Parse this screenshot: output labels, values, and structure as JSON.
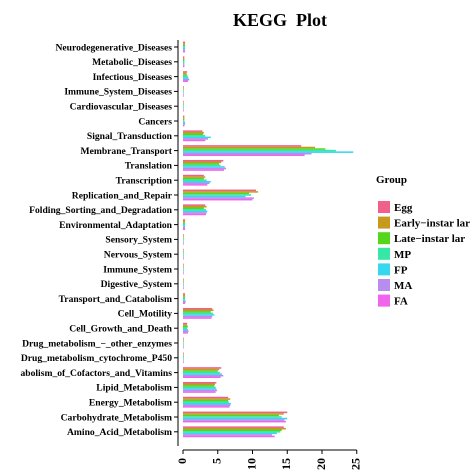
{
  "chart_data": {
    "type": "bar",
    "orientation": "horizontal",
    "title": "KEGG  Plot",
    "xlabel": "",
    "ylabel": "",
    "xlim": [
      0,
      25
    ],
    "xticks": [
      "0",
      "5",
      "10",
      "15",
      "20",
      "25"
    ],
    "legend_title": "Group",
    "legend_position": "right",
    "categories": [
      "Neurodegenerative_Diseases",
      "Metabolic_Diseases",
      "Infectious_Diseases",
      "Immune_System_Diseases",
      "Cardiovascular_Diseases",
      "Cancers",
      "Signal_Transduction",
      "Membrane_Transport",
      "Translation",
      "Transcription",
      "Replication_and_Repair",
      "Folding_Sorting_and_Degradation",
      "Environmental_Adaptation",
      "Sensory_System",
      "Nervous_System",
      "Immune_System",
      "Digestive_System",
      "Transport_and_Catabolism",
      "Cell_Motility",
      "Cell_Growth_and_Death",
      "Drug_metabolism_−_other_enzymes",
      "Drug_metabolism_cytochrome_P450",
      "abolism_of_Cofactors_and_Vitamins",
      "Lipid_Metabolism",
      "Energy_Metabolism",
      "Carbohydrate_Metabolism",
      "Amino_Acid_Metabolism"
    ],
    "series": [
      {
        "name": "Egg",
        "color": "#f0608a",
        "values": [
          0.3,
          0.2,
          0.6,
          0.1,
          0.1,
          0.2,
          2.8,
          17.0,
          5.8,
          3.0,
          10.5,
          3.2,
          0.3,
          0.1,
          0.1,
          0.1,
          0.1,
          0.3,
          4.2,
          0.6,
          0.1,
          0.1,
          5.5,
          4.8,
          6.5,
          15.0,
          14.5
        ]
      },
      {
        "name": "Early−instar larvae",
        "color": "#c79a1e",
        "values": [
          0.3,
          0.2,
          0.5,
          0.1,
          0.1,
          0.2,
          3.0,
          19.0,
          5.5,
          3.2,
          10.8,
          3.4,
          0.3,
          0.1,
          0.1,
          0.1,
          0.1,
          0.3,
          4.4,
          0.6,
          0.1,
          0.1,
          5.2,
          4.6,
          6.8,
          14.5,
          14.8
        ]
      },
      {
        "name": "Late−instar larvae",
        "color": "#55d61a",
        "values": [
          0.3,
          0.2,
          0.6,
          0.1,
          0.1,
          0.2,
          2.9,
          20.5,
          5.2,
          3.0,
          9.5,
          3.0,
          0.3,
          0.1,
          0.1,
          0.1,
          0.1,
          0.3,
          4.0,
          0.7,
          0.1,
          0.1,
          5.0,
          4.5,
          6.5,
          13.8,
          14.2
        ]
      },
      {
        "name": "MP",
        "color": "#35e8a6",
        "values": [
          0.3,
          0.2,
          0.7,
          0.1,
          0.1,
          0.2,
          3.2,
          22.0,
          5.4,
          3.4,
          9.8,
          3.3,
          0.3,
          0.1,
          0.1,
          0.1,
          0.1,
          0.3,
          4.3,
          0.6,
          0.1,
          0.1,
          5.3,
          4.7,
          6.6,
          14.2,
          14.0
        ]
      },
      {
        "name": "FP",
        "color": "#36d8f0",
        "values": [
          0.3,
          0.2,
          0.8,
          0.1,
          0.1,
          0.3,
          4.0,
          24.5,
          6.0,
          4.0,
          9.0,
          3.5,
          0.3,
          0.1,
          0.1,
          0.1,
          0.1,
          0.3,
          4.5,
          0.7,
          0.1,
          0.1,
          5.6,
          4.8,
          6.9,
          15.0,
          13.5
        ]
      },
      {
        "name": "MA",
        "color": "#b98cf0",
        "values": [
          0.3,
          0.2,
          0.9,
          0.1,
          0.1,
          0.3,
          3.6,
          18.5,
          6.2,
          3.8,
          10.2,
          3.4,
          0.3,
          0.1,
          0.1,
          0.1,
          0.1,
          0.4,
          4.2,
          0.8,
          0.1,
          0.1,
          5.8,
          4.9,
          6.8,
          14.6,
          12.8
        ]
      },
      {
        "name": "FA",
        "color": "#f064ee",
        "values": [
          0.3,
          0.2,
          0.7,
          0.1,
          0.1,
          0.2,
          3.2,
          17.5,
          5.9,
          3.5,
          10.0,
          3.3,
          0.3,
          0.1,
          0.1,
          0.1,
          0.1,
          0.3,
          4.1,
          0.7,
          0.1,
          0.1,
          5.4,
          4.7,
          6.7,
          14.8,
          13.2
        ]
      }
    ]
  },
  "legend_labels": {
    "l0": "Egg",
    "l1": "Early−instar lar",
    "l2": "Late−instar lar",
    "l3": "MP",
    "l4": "FP",
    "l5": "MA",
    "l6": "FA"
  }
}
